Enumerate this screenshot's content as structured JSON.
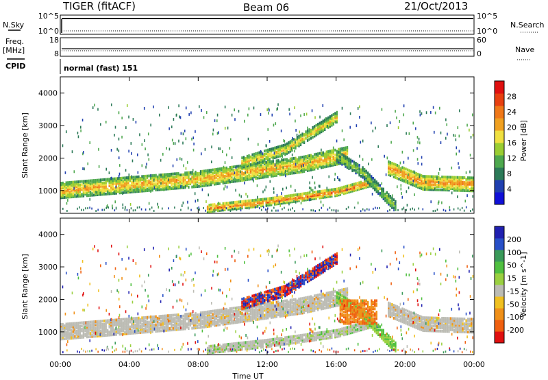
{
  "header": {
    "radar": "TIGER (fitACF)",
    "beam": "Beam 06",
    "date": "21/Oct/2013"
  },
  "side_labels": {
    "nsky": "N.Sky",
    "freq_a": "Freq.",
    "freq_b": "[MHz]",
    "cpid": "CPID",
    "nsearch": "N.Search",
    "nave": "Nave"
  },
  "cpid_text": "normal (fast) 151",
  "chart_data": [
    {
      "type": "line",
      "panel": "noise",
      "left_ticks": [
        "10^5",
        "10^0"
      ],
      "right_ticks": [
        "10^5",
        "10^0"
      ],
      "ylabel_left": "N.Sky",
      "ylabel_right": "N.Search"
    },
    {
      "type": "line",
      "panel": "frequency",
      "left_ticks": [
        "18",
        "8"
      ],
      "right_ticks": [
        "60",
        "0"
      ],
      "ylabel_left": "Freq. [MHz]",
      "ylabel_right": "Nave"
    },
    {
      "type": "heatmap",
      "panel": "power",
      "ylabel": "Slant Range [km]",
      "ylim": [
        300,
        4500
      ],
      "y_ticks": [
        1000,
        2000,
        3000,
        4000
      ],
      "colorbar_label": "Power [dB]",
      "colorbar_ticks": [
        4,
        8,
        12,
        16,
        20,
        24,
        28
      ],
      "colorbar_colors": [
        "#1010d8",
        "#2040b0",
        "#2c7a58",
        "#4ea84e",
        "#9acd32",
        "#f0e040",
        "#f0a020",
        "#f07818",
        "#e84010",
        "#e01010"
      ],
      "echo_bands": [
        {
          "t": [
            0,
            8,
            14,
            16.6
          ],
          "range": [
            1050,
            1400,
            1850,
            2150
          ],
          "power_db": 22
        },
        {
          "t": [
            19,
            21,
            24
          ],
          "range": [
            1750,
            1300,
            1250
          ],
          "power_db": 24
        },
        {
          "t": [
            8.5,
            12,
            16,
            18
          ],
          "range": [
            500,
            700,
            1000,
            1300
          ],
          "power_db": 26
        },
        {
          "t": [
            10.5,
            13,
            16
          ],
          "range": [
            1900,
            2300,
            3300
          ],
          "power_db": 20
        },
        {
          "t": [
            16,
            17.5,
            19.5
          ],
          "range": [
            2100,
            1600,
            500
          ],
          "power_db": 14
        }
      ]
    },
    {
      "type": "heatmap",
      "panel": "velocity",
      "ylabel": "Slant Range [km]",
      "xlabel": "Time UT",
      "ylim": [
        300,
        4500
      ],
      "y_ticks": [
        1000,
        2000,
        3000,
        4000
      ],
      "x_ticks": [
        "00:00",
        "04:00",
        "08:00",
        "12:00",
        "16:00",
        "20:00",
        "00:00"
      ],
      "xlim_hours": [
        0,
        24
      ],
      "colorbar_label": "Velocity [m s^-1]",
      "colorbar_ticks": [
        200,
        100,
        50,
        15,
        -15,
        -50,
        -100,
        -200
      ],
      "colorbar_colors": [
        "#2020b0",
        "#2850c8",
        "#3a9a5a",
        "#50c040",
        "#9ad040",
        "#bcbcb4",
        "#f0c020",
        "#f09018",
        "#f06010",
        "#e01010"
      ],
      "ground_scatter_color": "#bcbcb4"
    }
  ]
}
